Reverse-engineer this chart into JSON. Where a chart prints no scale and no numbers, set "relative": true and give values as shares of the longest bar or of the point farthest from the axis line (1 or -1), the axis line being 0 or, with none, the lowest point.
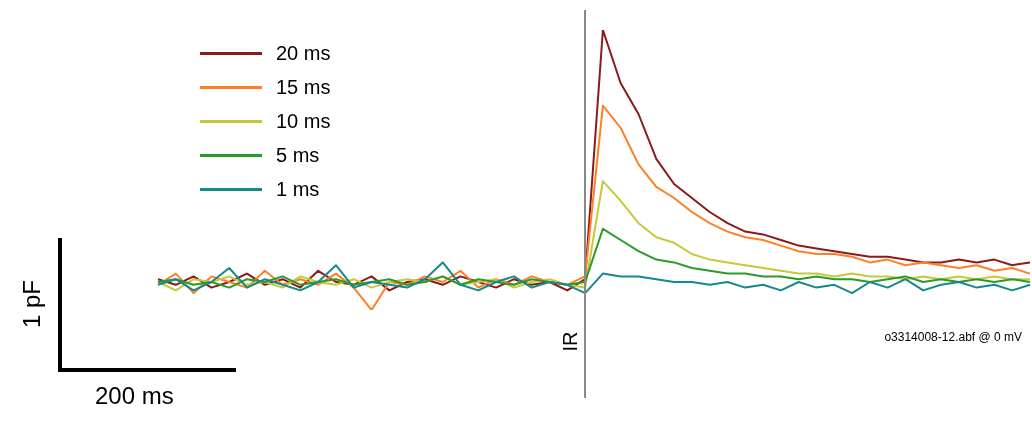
{
  "chart_data": {
    "type": "line",
    "relative": true,
    "legend": "top left",
    "marker": "none",
    "line_style": "solid",
    "categories": [
      null,
      null,
      null,
      null,
      null,
      null,
      null,
      null,
      null,
      null,
      null,
      null,
      null,
      null,
      null,
      null,
      null,
      null,
      null,
      null,
      null,
      null,
      null,
      null,
      null,
      null,
      null,
      null,
      null,
      null,
      null,
      null,
      null,
      null,
      null,
      null,
      null,
      null,
      null,
      null,
      null,
      null,
      null,
      null,
      null,
      null,
      null,
      null,
      null,
      null
    ],
    "series": [
      {
        "name": "20 ms",
        "color": "#8b1a1a",
        "values": [
          0.11,
          0.09,
          0.12,
          0.08,
          0.1,
          0.13,
          0.09,
          0.11,
          0.08,
          0.14,
          0.1,
          0.09,
          0.12,
          0.07,
          0.1,
          0.11,
          0.09,
          0.12,
          0.1,
          0.08,
          0.11,
          0.09,
          0.1,
          0.07,
          0.11,
          1.0,
          0.81,
          0.7,
          0.54,
          0.45,
          0.4,
          0.35,
          0.31,
          0.28,
          0.27,
          0.25,
          0.23,
          0.22,
          0.21,
          0.2,
          0.19,
          0.19,
          0.18,
          0.17,
          0.17,
          0.18,
          0.17,
          0.18,
          0.16,
          0.17
        ]
      },
      {
        "name": "15 ms",
        "color": "#ff7f27",
        "values": [
          0.09,
          0.13,
          0.06,
          0.12,
          0.1,
          0.08,
          0.14,
          0.09,
          0.11,
          0.09,
          0.13,
          0.08,
          0.0,
          0.1,
          0.09,
          0.12,
          0.1,
          0.14,
          0.08,
          0.11,
          0.09,
          0.12,
          0.1,
          0.09,
          0.12,
          0.73,
          0.65,
          0.52,
          0.44,
          0.4,
          0.35,
          0.31,
          0.28,
          0.26,
          0.25,
          0.23,
          0.21,
          0.2,
          0.2,
          0.19,
          0.17,
          0.18,
          0.16,
          0.17,
          0.16,
          0.15,
          0.16,
          0.14,
          0.15,
          0.13
        ]
      },
      {
        "name": "10 ms",
        "color": "#c8c83a",
        "values": [
          0.1,
          0.07,
          0.11,
          0.1,
          0.12,
          0.09,
          0.1,
          0.08,
          0.12,
          0.1,
          0.09,
          0.11,
          0.08,
          0.1,
          0.11,
          0.1,
          0.12,
          0.09,
          0.1,
          0.11,
          0.08,
          0.1,
          0.11,
          0.09,
          0.08,
          0.46,
          0.39,
          0.31,
          0.26,
          0.24,
          0.2,
          0.18,
          0.17,
          0.16,
          0.15,
          0.14,
          0.13,
          0.13,
          0.12,
          0.13,
          0.12,
          0.12,
          0.11,
          0.12,
          0.11,
          0.12,
          0.11,
          0.12,
          0.11,
          0.11
        ]
      },
      {
        "name": "5 ms",
        "color": "#2a9a2a",
        "values": [
          0.1,
          0.11,
          0.09,
          0.1,
          0.08,
          0.11,
          0.1,
          0.12,
          0.09,
          0.1,
          0.11,
          0.09,
          0.1,
          0.11,
          0.09,
          0.1,
          0.12,
          0.09,
          0.11,
          0.1,
          0.09,
          0.11,
          0.1,
          0.09,
          0.1,
          0.29,
          0.25,
          0.21,
          0.18,
          0.17,
          0.15,
          0.14,
          0.13,
          0.13,
          0.12,
          0.12,
          0.11,
          0.12,
          0.11,
          0.11,
          0.1,
          0.11,
          0.12,
          0.1,
          0.11,
          0.1,
          0.11,
          0.1,
          0.11,
          0.1
        ]
      },
      {
        "name": "1 ms",
        "color": "#17898a",
        "values": [
          0.09,
          0.11,
          0.07,
          0.1,
          0.15,
          0.08,
          0.11,
          0.09,
          0.07,
          0.1,
          0.16,
          0.08,
          0.1,
          0.09,
          0.08,
          0.11,
          0.17,
          0.09,
          0.07,
          0.1,
          0.12,
          0.08,
          0.1,
          0.09,
          0.06,
          0.13,
          0.12,
          0.12,
          0.11,
          0.1,
          0.1,
          0.09,
          0.1,
          0.08,
          0.09,
          0.07,
          0.1,
          0.08,
          0.09,
          0.06,
          0.1,
          0.08,
          0.11,
          0.07,
          0.09,
          0.1,
          0.08,
          0.09,
          0.07,
          0.09
        ]
      }
    ],
    "annotations": [
      "IR",
      "1 pF",
      "200 ms",
      "o3314008-12.abf @ 0 mV"
    ]
  }
}
